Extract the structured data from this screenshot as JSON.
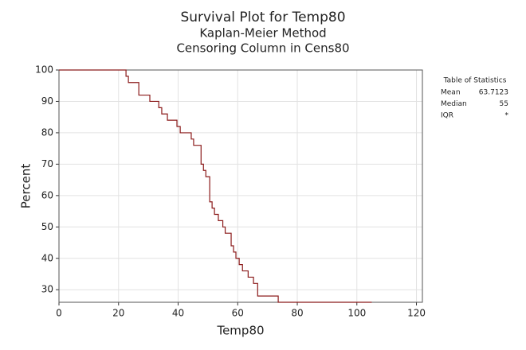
{
  "chart_data": {
    "type": "step",
    "title": "Survival Plot for Temp80",
    "subtitle": "Kaplan-Meier Method",
    "subtitle2": "Censoring Column in Cens80",
    "x_label": "Temp80",
    "y_label": "Percent",
    "series": [
      {
        "name": "Temp80",
        "color": "#8b1a1a",
        "x": [
          0,
          22.5,
          23.3,
          26.8,
          30.5,
          33.5,
          34.5,
          36.4,
          39.6,
          40.7,
          44.4,
          45.2,
          47.7,
          48.5,
          49.3,
          50.6,
          51.4,
          52.2,
          53.5,
          55,
          55.8,
          57.8,
          58.6,
          59.4,
          60.5,
          61.6,
          63.5,
          65.3,
          66.7,
          73.6,
          105
        ],
        "values": [
          100,
          98,
          96,
          92,
          90,
          88,
          86,
          84,
          82,
          80,
          78,
          76,
          70,
          68,
          66,
          58,
          56,
          54,
          52,
          50,
          48,
          44,
          42,
          40,
          38,
          36,
          34,
          32,
          28,
          26,
          26
        ]
      }
    ],
    "xlim": [
      0,
      122
    ],
    "xticks": [
      0,
      20,
      40,
      60,
      80,
      100,
      120
    ],
    "ylim": [
      26,
      100
    ],
    "yticks": [
      30,
      40,
      50,
      60,
      70,
      80,
      90,
      100
    ],
    "grid": true,
    "stats_table": {
      "title": "Table of Statistics",
      "rows": [
        [
          "Mean",
          63.7123
        ],
        [
          "Median",
          55
        ],
        [
          "IQR",
          "*"
        ]
      ]
    }
  }
}
